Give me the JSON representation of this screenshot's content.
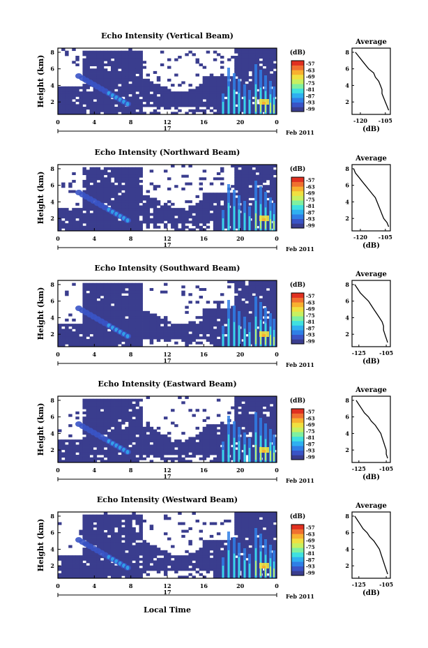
{
  "common": {
    "x_ticks": [
      "0",
      "4",
      "8",
      "12",
      "16",
      "20",
      "0"
    ],
    "day_label": "17",
    "month_label": "Feb 2011",
    "y_ticks": [
      "2",
      "4",
      "6",
      "8"
    ],
    "ylabel": "Height (km)",
    "colorbar_unit": "(dB)",
    "colorbar_ticks": [
      "-57",
      "-63",
      "-69",
      "-75",
      "-81",
      "-87",
      "-93",
      "-99"
    ],
    "colorbar_colors": [
      "#3a3d8e",
      "#3a54c6",
      "#2f7fe6",
      "#2fb0f0",
      "#3fe0e0",
      "#7ff0a0",
      "#c8f060",
      "#f0e040",
      "#f8b030",
      "#f07030",
      "#e03020"
    ],
    "avg_title": "Average",
    "avg_xlabel": "(dB)",
    "xlabel_bottom": "Local Time"
  },
  "chart_data": [
    {
      "type": "heatmap",
      "title": "Echo Intensity (Vertical Beam)",
      "avg_ticks": [
        "-120",
        "-105"
      ],
      "avg_xlim": [
        -125,
        -102
      ],
      "avg_profile": {
        "height_km": [
          1,
          1.5,
          2,
          2.5,
          3,
          3.5,
          4,
          4.5,
          5,
          5.5,
          6,
          6.5,
          7,
          7.5,
          8
        ],
        "db": [
          -103,
          -104,
          -105,
          -106,
          -107,
          -107,
          -108,
          -109,
          -111,
          -112,
          -115,
          -117,
          -119,
          -121,
          -123
        ]
      }
    },
    {
      "type": "heatmap",
      "title": "Echo Intensity (Northward Beam)",
      "avg_ticks": [
        "-120",
        "-105"
      ],
      "avg_xlim": [
        -125,
        -102
      ],
      "avg_profile": {
        "height_km": [
          1,
          1.5,
          2,
          2.5,
          3,
          3.5,
          4,
          4.5,
          5,
          5.5,
          6,
          6.5,
          7,
          7.5,
          8
        ],
        "db": [
          -103,
          -104,
          -106,
          -107,
          -108,
          -109,
          -110,
          -111,
          -113,
          -115,
          -117,
          -119,
          -121,
          -123,
          -124
        ]
      }
    },
    {
      "type": "heatmap",
      "title": "Echo Intensity (Southward Beam)",
      "avg_ticks": [
        "-125",
        "-105"
      ],
      "avg_xlim": [
        -130,
        -102
      ],
      "avg_profile": {
        "height_km": [
          1,
          1.5,
          2,
          2.5,
          3,
          3.5,
          4,
          4.5,
          5,
          5.5,
          6,
          6.5,
          7,
          7.5,
          8
        ],
        "db": [
          -104,
          -105,
          -106,
          -107,
          -107,
          -108,
          -110,
          -112,
          -114,
          -116,
          -118,
          -121,
          -124,
          -126,
          -128
        ]
      }
    },
    {
      "type": "heatmap",
      "title": "Echo Intensity (Eastward Beam)",
      "avg_ticks": [
        "-125",
        "-105"
      ],
      "avg_xlim": [
        -130,
        -102
      ],
      "avg_profile": {
        "height_km": [
          1,
          1.5,
          2,
          2.5,
          3,
          3.5,
          4,
          4.5,
          5,
          5.5,
          6,
          6.5,
          7,
          7.5,
          8
        ],
        "db": [
          -104,
          -105,
          -105,
          -106,
          -107,
          -108,
          -109,
          -111,
          -113,
          -116,
          -118,
          -121,
          -123,
          -125,
          -127
        ]
      }
    },
    {
      "type": "heatmap",
      "title": "Echo Intensity (Westward Beam)",
      "avg_ticks": [
        "-125",
        "-105"
      ],
      "avg_xlim": [
        -130,
        -102
      ],
      "avg_profile": {
        "height_km": [
          1,
          1.5,
          2,
          2.5,
          3,
          3.5,
          4,
          4.5,
          5,
          5.5,
          6,
          6.5,
          7,
          7.5,
          8
        ],
        "db": [
          -104,
          -105,
          -106,
          -107,
          -108,
          -109,
          -110,
          -112,
          -114,
          -117,
          -119,
          -122,
          -124,
          -126,
          -128
        ]
      }
    }
  ]
}
